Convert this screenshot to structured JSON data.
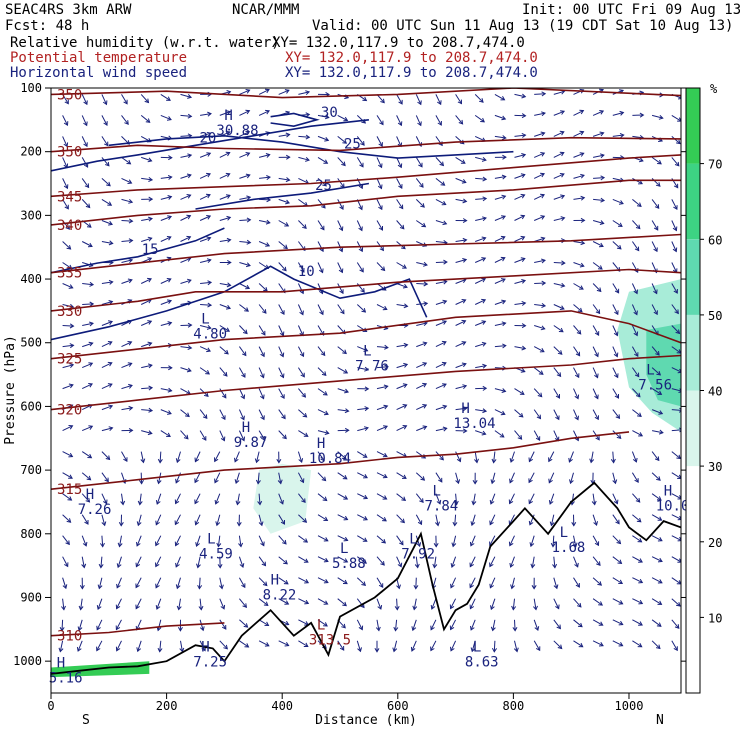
{
  "header": {
    "line1_left": "SEAC4RS  3km ARW",
    "line1_center": "NCAR/MMM",
    "line1_right": "Init: 00 UTC Fri 09 Aug 13",
    "line2_left": "Fcst:    48 h",
    "line2_right": "Valid: 00 UTC Sun 11 Aug 13 (19 CDT Sat 10 Aug 13)",
    "fields": [
      {
        "name": "Relative humidity (w.r.t. water)",
        "xy": "XY= 132.0,117.9 to 208.7,474.0",
        "color": "#000000"
      },
      {
        "name": "Potential temperature",
        "xy": "XY= 132.0,117.9 to 208.7,474.0",
        "color": "#b22222"
      },
      {
        "name": "Horizontal wind speed",
        "xy": "XY= 132.0,117.9 to 208.7,474.0",
        "color": "#1a237e"
      }
    ]
  },
  "chart_data": {
    "type": "cross-section",
    "xlabel": "Distance (km)",
    "ylabel": "Pressure (hPa)",
    "xlim": [
      0,
      1090
    ],
    "ylim": [
      1050,
      100
    ],
    "x_ticks": [
      0,
      200,
      400,
      600,
      800,
      1000
    ],
    "y_ticks": [
      100,
      200,
      300,
      400,
      500,
      600,
      700,
      800,
      900,
      1000
    ],
    "x_end_labels": {
      "left": "S",
      "right": "N"
    },
    "colorbar": {
      "unit": "%",
      "ticks": [
        10,
        20,
        30,
        40,
        50,
        60,
        70
      ],
      "min": 0,
      "max": 80,
      "colors": [
        "#ffffff",
        "#ffffff",
        "#ffffff",
        "#d9f5ec",
        "#a8ecd8",
        "#5fd9b0",
        "#3dd383",
        "#34cc55"
      ]
    },
    "theta_contours": [
      {
        "value": 350,
        "points": [
          [
            0,
            110
          ],
          [
            200,
            105
          ],
          [
            400,
            115
          ],
          [
            600,
            110
          ],
          [
            800,
            100
          ],
          [
            1090,
            112
          ]
        ]
      },
      {
        "value": 350,
        "points": [
          [
            0,
            200
          ],
          [
            150,
            190
          ],
          [
            300,
            195
          ],
          [
            500,
            198
          ],
          [
            700,
            185
          ],
          [
            900,
            178
          ],
          [
            1090,
            180
          ]
        ]
      },
      {
        "value": 345,
        "points": [
          [
            0,
            270
          ],
          [
            150,
            260
          ],
          [
            300,
            255
          ],
          [
            450,
            250
          ],
          [
            600,
            240
          ],
          [
            800,
            225
          ],
          [
            1000,
            210
          ],
          [
            1090,
            205
          ]
        ]
      },
      {
        "value": 340,
        "points": [
          [
            0,
            315
          ],
          [
            150,
            300
          ],
          [
            300,
            290
          ],
          [
            450,
            285
          ],
          [
            600,
            270
          ],
          [
            800,
            260
          ],
          [
            1000,
            245
          ],
          [
            1090,
            245
          ]
        ]
      },
      {
        "value": 335,
        "points": [
          [
            0,
            390
          ],
          [
            150,
            375
          ],
          [
            300,
            360
          ],
          [
            500,
            350
          ],
          [
            700,
            345
          ],
          [
            900,
            340
          ],
          [
            1090,
            330
          ]
        ]
      },
      {
        "value": 330,
        "points": [
          [
            0,
            450
          ],
          [
            150,
            435
          ],
          [
            250,
            420
          ],
          [
            400,
            420
          ],
          [
            600,
            405
          ],
          [
            800,
            395
          ],
          [
            1000,
            385
          ],
          [
            1090,
            390
          ]
        ]
      },
      {
        "value": 325,
        "points": [
          [
            0,
            525
          ],
          [
            150,
            510
          ],
          [
            300,
            495
          ],
          [
            500,
            485
          ],
          [
            700,
            460
          ],
          [
            900,
            450
          ],
          [
            1000,
            470
          ],
          [
            1090,
            500
          ]
        ]
      },
      {
        "value": 320,
        "points": [
          [
            0,
            605
          ],
          [
            150,
            590
          ],
          [
            300,
            575
          ],
          [
            500,
            560
          ],
          [
            700,
            545
          ],
          [
            900,
            535
          ],
          [
            1000,
            525
          ],
          [
            1090,
            520
          ]
        ]
      },
      {
        "value": 315,
        "points": [
          [
            0,
            730
          ],
          [
            150,
            715
          ],
          [
            300,
            700
          ],
          [
            500,
            690
          ],
          [
            600,
            680
          ],
          [
            700,
            675
          ],
          [
            800,
            665
          ],
          [
            900,
            650
          ],
          [
            1000,
            640
          ]
        ]
      },
      {
        "value": 310,
        "points": [
          [
            0,
            960
          ],
          [
            100,
            955
          ],
          [
            200,
            945
          ],
          [
            300,
            940
          ]
        ]
      }
    ],
    "wind_contours": [
      {
        "value": 10,
        "points": [
          [
            0,
            495
          ],
          [
            100,
            475
          ],
          [
            200,
            450
          ],
          [
            300,
            420
          ],
          [
            380,
            380
          ],
          [
            420,
            400
          ],
          [
            500,
            430
          ],
          [
            560,
            420
          ],
          [
            620,
            400
          ],
          [
            650,
            460
          ]
        ]
      },
      {
        "value": 15,
        "points": [
          [
            0,
            390
          ],
          [
            80,
            375
          ],
          [
            150,
            365
          ],
          [
            250,
            340
          ],
          [
            300,
            320
          ]
        ]
      },
      {
        "value": 20,
        "points": [
          [
            0,
            230
          ],
          [
            80,
            215
          ],
          [
            150,
            205
          ],
          [
            250,
            190
          ],
          [
            350,
            175
          ],
          [
            450,
            160
          ],
          [
            550,
            150
          ]
        ]
      },
      {
        "value": 25,
        "points": [
          [
            100,
            190
          ],
          [
            200,
            180
          ],
          [
            300,
            175
          ],
          [
            400,
            185
          ],
          [
            500,
            200
          ],
          [
            600,
            210
          ],
          [
            700,
            205
          ],
          [
            800,
            200
          ]
        ]
      },
      {
        "value": 25,
        "points": [
          [
            250,
            290
          ],
          [
            350,
            275
          ],
          [
            450,
            265
          ],
          [
            550,
            250
          ]
        ]
      },
      {
        "value": 30,
        "points": [
          [
            380,
            145
          ],
          [
            420,
            140
          ],
          [
            460,
            150
          ],
          [
            420,
            160
          ],
          [
            380,
            155
          ]
        ]
      }
    ],
    "annotations": [
      {
        "kind": "H",
        "value": "30.88",
        "x": 300,
        "y": 150
      },
      {
        "kind": "L",
        "value": "4.80",
        "x": 260,
        "y": 470
      },
      {
        "kind": "L",
        "value": "7.76",
        "x": 540,
        "y": 520
      },
      {
        "kind": "H",
        "value": "13.04",
        "x": 710,
        "y": 610
      },
      {
        "kind": "H",
        "value": "9.87",
        "x": 330,
        "y": 640
      },
      {
        "kind": "H",
        "value": "10.84",
        "x": 460,
        "y": 665
      },
      {
        "kind": "H",
        "value": "7.26",
        "x": 60,
        "y": 745
      },
      {
        "kind": "L",
        "value": "7.84",
        "x": 660,
        "y": 740
      },
      {
        "kind": "L",
        "value": "4.59",
        "x": 270,
        "y": 815
      },
      {
        "kind": "L",
        "value": "5.88",
        "x": 500,
        "y": 830
      },
      {
        "kind": "L",
        "value": "7.92",
        "x": 620,
        "y": 815
      },
      {
        "kind": "L",
        "value": "7.56",
        "x": 1030,
        "y": 550
      },
      {
        "kind": "L",
        "value": "1.68",
        "x": 880,
        "y": 805
      },
      {
        "kind": "H",
        "value": "10.0",
        "x": 1060,
        "y": 740
      },
      {
        "kind": "H",
        "value": "8.22",
        "x": 380,
        "y": 880
      },
      {
        "kind": "L",
        "value": "313.5",
        "x": 460,
        "y": 950
      },
      {
        "kind": "H",
        "value": "7.25",
        "x": 260,
        "y": 985
      },
      {
        "kind": "L",
        "value": "8.63",
        "x": 730,
        "y": 985
      },
      {
        "kind": "H",
        "value": "5.16",
        "x": 10,
        "y": 1010
      }
    ],
    "terrain": [
      [
        0,
        1020
      ],
      [
        50,
        1015
      ],
      [
        100,
        1010
      ],
      [
        150,
        1008
      ],
      [
        200,
        1000
      ],
      [
        250,
        975
      ],
      [
        280,
        980
      ],
      [
        300,
        1000
      ],
      [
        330,
        960
      ],
      [
        380,
        920
      ],
      [
        420,
        960
      ],
      [
        450,
        940
      ],
      [
        480,
        990
      ],
      [
        500,
        930
      ],
      [
        560,
        900
      ],
      [
        600,
        870
      ],
      [
        640,
        800
      ],
      [
        660,
        880
      ],
      [
        680,
        950
      ],
      [
        700,
        920
      ],
      [
        720,
        910
      ],
      [
        740,
        880
      ],
      [
        760,
        820
      ],
      [
        800,
        780
      ],
      [
        820,
        760
      ],
      [
        860,
        800
      ],
      [
        900,
        750
      ],
      [
        940,
        720
      ],
      [
        980,
        760
      ],
      [
        1000,
        790
      ],
      [
        1030,
        810
      ],
      [
        1060,
        780
      ],
      [
        1090,
        790
      ]
    ]
  }
}
